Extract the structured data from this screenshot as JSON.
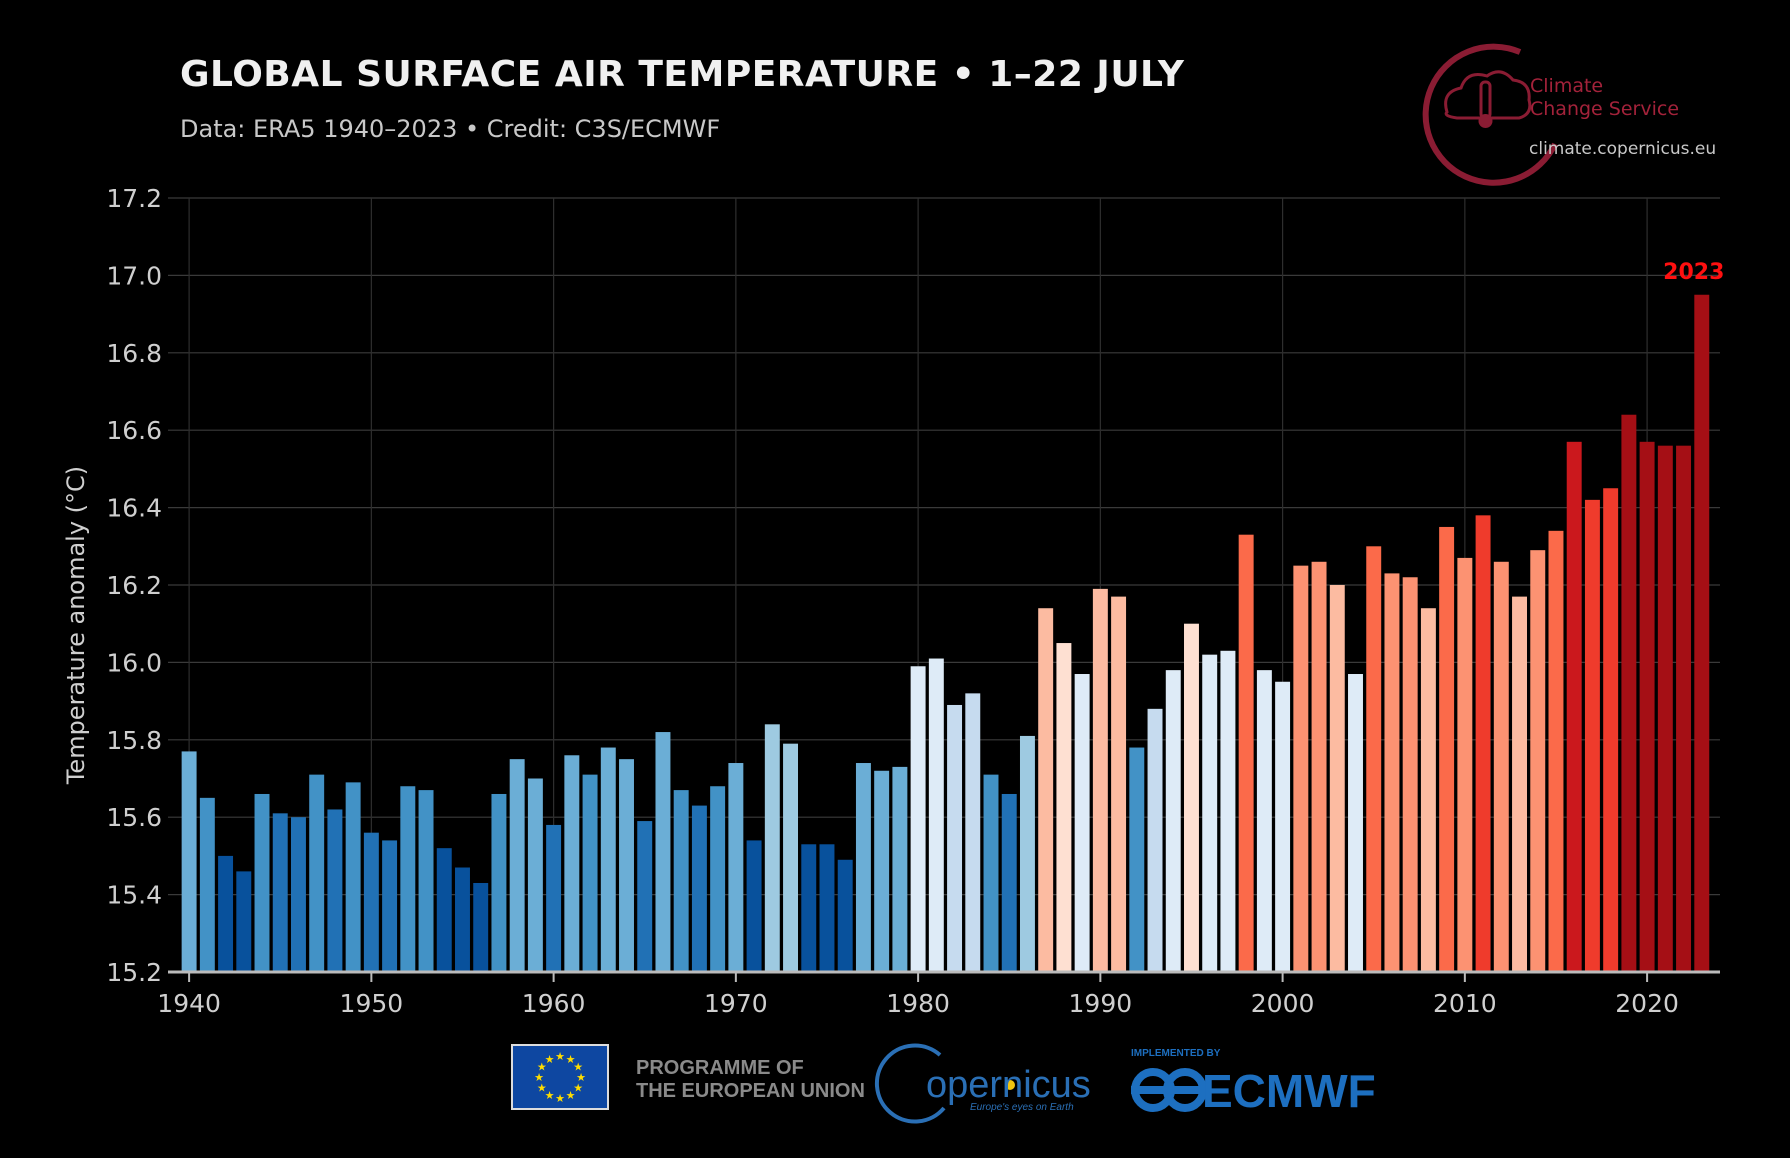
{
  "header": {
    "title": "GLOBAL SURFACE AIR TEMPERATURE • 1–22 JULY",
    "subtitle": "Data: ERA5 1940–2023 • Credit: C3S/ECMWF"
  },
  "branding": {
    "c3s_line1": "Climate",
    "c3s_line2": "Change Service",
    "url": "climate.copernicus.eu",
    "eu_line1": "PROGRAMME OF",
    "eu_line2": "THE EUROPEAN UNION",
    "copernicus_name": "opernicus",
    "copernicus_tagline": "Europe's eyes on Earth",
    "ecmwf_small": "IMPLEMENTED BY",
    "ecmwf_name": "ECMWF",
    "accent_color": "#a3223a"
  },
  "chart_data": {
    "type": "bar",
    "title": "GLOBAL SURFACE AIR TEMPERATURE • 1–22 JULY",
    "ylabel": "Temperature anomaly (°C)",
    "xlabel": "",
    "ylim": [
      15.2,
      17.2
    ],
    "xlim": [
      1939.5,
      2024
    ],
    "yticks": [
      "15.2",
      "15.4",
      "15.6",
      "15.8",
      "16.0",
      "16.2",
      "16.4",
      "16.6",
      "16.8",
      "17.0",
      "17.2"
    ],
    "xticks": [
      "1940",
      "1950",
      "1960",
      "1970",
      "1980",
      "1990",
      "2000",
      "2010",
      "2020"
    ],
    "grid": true,
    "highlight": {
      "year": 2023,
      "label": "2023",
      "color": "#ff1010"
    },
    "x": [
      1940,
      1941,
      1942,
      1943,
      1944,
      1945,
      1946,
      1947,
      1948,
      1949,
      1950,
      1951,
      1952,
      1953,
      1954,
      1955,
      1956,
      1957,
      1958,
      1959,
      1960,
      1961,
      1962,
      1963,
      1964,
      1965,
      1966,
      1967,
      1968,
      1969,
      1970,
      1971,
      1972,
      1973,
      1974,
      1975,
      1976,
      1977,
      1978,
      1979,
      1980,
      1981,
      1982,
      1983,
      1984,
      1985,
      1986,
      1987,
      1988,
      1989,
      1990,
      1991,
      1992,
      1993,
      1994,
      1995,
      1996,
      1997,
      1998,
      1999,
      2000,
      2001,
      2002,
      2003,
      2004,
      2005,
      2006,
      2007,
      2008,
      2009,
      2010,
      2011,
      2012,
      2013,
      2014,
      2015,
      2016,
      2017,
      2018,
      2019,
      2020,
      2021,
      2022,
      2023
    ],
    "values": [
      15.77,
      15.65,
      15.5,
      15.46,
      15.66,
      15.61,
      15.6,
      15.71,
      15.62,
      15.69,
      15.56,
      15.54,
      15.68,
      15.67,
      15.52,
      15.47,
      15.43,
      15.66,
      15.75,
      15.7,
      15.58,
      15.76,
      15.71,
      15.78,
      15.75,
      15.59,
      15.82,
      15.67,
      15.63,
      15.68,
      15.74,
      15.54,
      15.84,
      15.79,
      15.53,
      15.53,
      15.49,
      15.74,
      15.72,
      15.73,
      15.99,
      16.01,
      15.89,
      15.92,
      15.71,
      15.66,
      15.81,
      16.14,
      16.05,
      15.97,
      16.19,
      16.17,
      15.78,
      15.88,
      15.98,
      16.1,
      16.02,
      16.03,
      16.33,
      15.98,
      15.95,
      16.25,
      16.26,
      16.2,
      15.97,
      16.3,
      16.23,
      16.22,
      16.14,
      16.35,
      16.27,
      16.38,
      16.26,
      16.17,
      16.29,
      16.34,
      16.57,
      16.42,
      16.45,
      16.64,
      16.57,
      16.56,
      16.56,
      16.95
    ],
    "colors": [
      "#6baed6",
      "#4292c6",
      "#08519c",
      "#08519c",
      "#4292c6",
      "#2171b5",
      "#2171b5",
      "#4292c6",
      "#2171b5",
      "#4292c6",
      "#2171b5",
      "#2171b5",
      "#4292c6",
      "#4292c6",
      "#08519c",
      "#08519c",
      "#08519c",
      "#4292c6",
      "#6baed6",
      "#6baed6",
      "#2171b5",
      "#6baed6",
      "#4292c6",
      "#6baed6",
      "#6baed6",
      "#2171b5",
      "#6baed6",
      "#4292c6",
      "#2171b5",
      "#4292c6",
      "#6baed6",
      "#08519c",
      "#9ecae1",
      "#9ecae1",
      "#08519c",
      "#08519c",
      "#08519c",
      "#6baed6",
      "#6baed6",
      "#6baed6",
      "#deebf7",
      "#deebf7",
      "#c6dbef",
      "#c6dbef",
      "#4292c6",
      "#2171b5",
      "#9ecae1",
      "#fcbba1",
      "#fee0d2",
      "#deebf7",
      "#fcbba1",
      "#fcbba1",
      "#4292c6",
      "#c6dbef",
      "#deebf7",
      "#fee0d2",
      "#deebf7",
      "#deebf7",
      "#fb6a4a",
      "#deebf7",
      "#deebf7",
      "#fc9272",
      "#fc9272",
      "#fcbba1",
      "#deebf7",
      "#fb6a4a",
      "#fc9272",
      "#fc9272",
      "#fcbba1",
      "#fb6a4a",
      "#fc9272",
      "#ef3b2c",
      "#fc9272",
      "#fcbba1",
      "#fc9272",
      "#fb6a4a",
      "#cb181d",
      "#ef3b2c",
      "#ef3b2c",
      "#a50f15",
      "#a50f15",
      "#a50f15",
      "#a50f15",
      "#a50f15"
    ]
  }
}
